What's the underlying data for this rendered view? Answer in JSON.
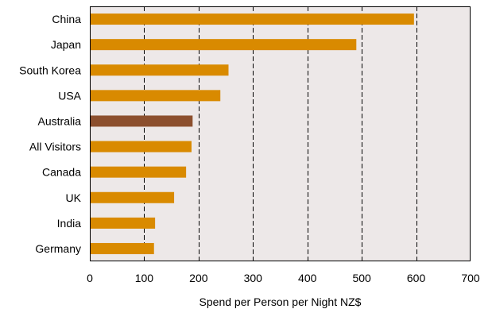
{
  "chart_data": {
    "type": "bar",
    "orientation": "horizontal",
    "categories": [
      "China",
      "Japan",
      "South Korea",
      "USA",
      "Australia",
      "All Visitors",
      "Canada",
      "UK",
      "India",
      "Germany"
    ],
    "values": [
      596,
      490,
      255,
      240,
      189,
      187,
      177,
      155,
      120,
      118
    ],
    "highlight_category": "Australia",
    "xlabel": "Spend per Person per Night NZ$",
    "ylabel": "",
    "title": "",
    "xlim": [
      0,
      700
    ],
    "xticks": [
      0,
      100,
      200,
      300,
      400,
      500,
      600,
      700
    ],
    "grid": "vertical dashed",
    "legend": "none",
    "colors": {
      "bar": "#D98A00",
      "highlight": "#8C4F2E",
      "plot_background": "#EDE8E8",
      "gridline": "#000000"
    }
  }
}
